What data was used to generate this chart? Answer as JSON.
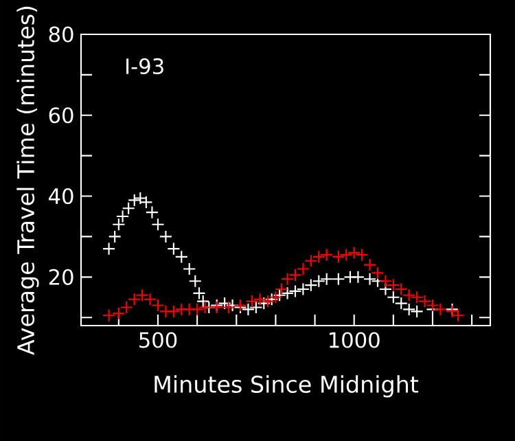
{
  "chart_data": {
    "type": "scatter",
    "xlabel": "Minutes Since Midnight",
    "ylabel": "Average Travel Time (minutes)",
    "annotations": [
      "I-93"
    ],
    "xlim": [
      304,
      1347
    ],
    "ylim": [
      8,
      80
    ],
    "xticks": [
      {
        "value": 400,
        "label": null
      },
      500,
      {
        "value": 600,
        "label": null
      },
      {
        "value": 700,
        "label": null
      },
      {
        "value": 800,
        "label": null
      },
      {
        "value": 900,
        "label": null
      },
      1000,
      {
        "value": 1100,
        "label": null
      },
      {
        "value": 1200,
        "label": null
      },
      {
        "value": 1300,
        "label": null
      }
    ],
    "yticks": [
      {
        "value": 10,
        "label": null
      },
      20,
      {
        "value": 30,
        "label": null
      },
      40,
      {
        "value": 50,
        "label": null
      },
      60,
      {
        "value": 70,
        "label": null
      },
      80
    ],
    "marker": "cross",
    "grid": false,
    "series": [
      {
        "color": "#ffffff",
        "x": [
          375,
          390,
          400,
          410,
          425,
          440,
          455,
          470,
          485,
          500,
          520,
          540,
          560,
          580,
          595,
          605,
          615,
          630,
          650,
          670,
          690,
          710,
          730,
          750,
          770,
          790,
          810,
          830,
          850,
          870,
          890,
          910,
          930,
          960,
          990,
          1010,
          1040,
          1060,
          1080,
          1100,
          1120,
          1140,
          1160,
          1200,
          1250
        ],
        "values": [
          27,
          30,
          33,
          35,
          37,
          39,
          39.5,
          38.5,
          36,
          33,
          30,
          27,
          25,
          22,
          19,
          16,
          14,
          12.5,
          13,
          13.5,
          13,
          12.5,
          12,
          12.5,
          13.5,
          14.5,
          15.5,
          16,
          16.5,
          17,
          18,
          19,
          19.5,
          19.5,
          20,
          20,
          19.5,
          19,
          17,
          15,
          13.5,
          12,
          11.5,
          12,
          12
        ]
      },
      {
        "color": "#ff0000",
        "x": [
          375,
          400,
          420,
          440,
          460,
          480,
          500,
          520,
          540,
          560,
          580,
          600,
          620,
          650,
          680,
          710,
          740,
          760,
          780,
          800,
          815,
          830,
          850,
          870,
          890,
          910,
          930,
          960,
          980,
          1000,
          1020,
          1040,
          1060,
          1080,
          1100,
          1120,
          1140,
          1160,
          1180,
          1200,
          1220,
          1250,
          1265
        ],
        "values": [
          10.5,
          11,
          12.5,
          14.5,
          15.5,
          14.5,
          13,
          11.5,
          11.5,
          12,
          12,
          12,
          12.5,
          12.5,
          12.5,
          13,
          14,
          14.5,
          14,
          15,
          17,
          19.5,
          20.5,
          22,
          24,
          25,
          25.5,
          25,
          25.5,
          26,
          25.5,
          23,
          21,
          19,
          18,
          17,
          15.5,
          15,
          14,
          13,
          12,
          11.5,
          10.5
        ]
      }
    ]
  }
}
